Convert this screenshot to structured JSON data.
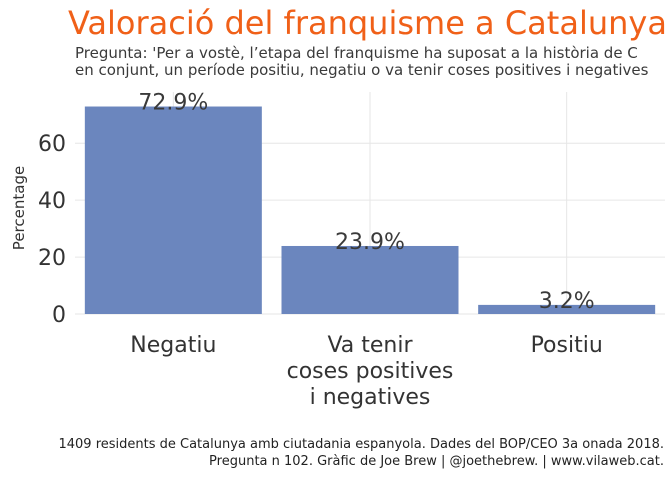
{
  "header": {
    "title": "Valoració del franquisme a Catalunya",
    "subtitle_line1": "Pregunta: 'Per a vostè, l’etapa del franquisme ha suposat a la història de C",
    "subtitle_line2": "en conjunt, un període positiu, negatiu o va tenir coses positives i negatives"
  },
  "chart_data": {
    "type": "bar",
    "categories": [
      "Negatiu",
      "Va tenir coses positives i negatives",
      "Positiu"
    ],
    "category_lines": [
      [
        "Negatiu"
      ],
      [
        "Va tenir",
        "coses positives",
        "i negatives"
      ],
      [
        "Positiu"
      ]
    ],
    "values": [
      72.9,
      23.9,
      3.2
    ],
    "data_labels": [
      "72.9%",
      "23.9%",
      "3.2%"
    ],
    "ylabel": "Percentage",
    "xlabel": "",
    "yticks": [
      0,
      20,
      40,
      60
    ],
    "ylim": [
      0,
      78
    ],
    "grid": true,
    "bar_color": "#6b86be"
  },
  "caption": {
    "line1": "1409 residents de Catalunya amb ciutadania espanyola. Dades del BOP/CEO 3a onada 2018.",
    "line2": "Pregunta n 102. Gràfic de Joe Brew | @joethebrew. |  www.vilaweb.cat."
  },
  "colors": {
    "title": "#f06018",
    "grid": "#e6e6e6",
    "text": "#333333"
  }
}
